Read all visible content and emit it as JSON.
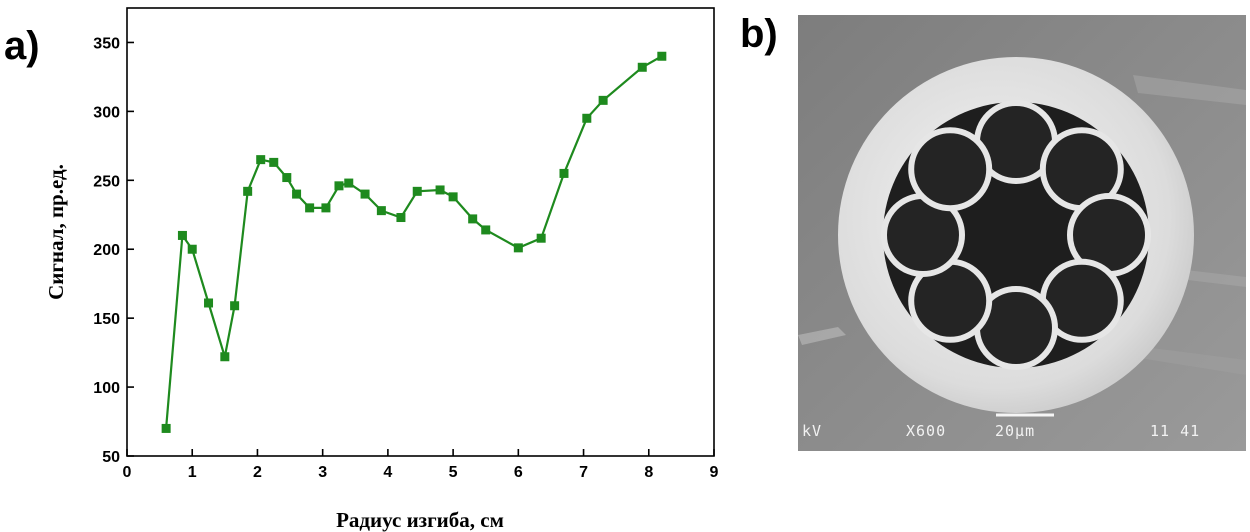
{
  "panels": {
    "a_label": "a)",
    "b_label": "b)"
  },
  "chart_data": {
    "type": "line",
    "xlabel": "Радиус изгиба, см",
    "ylabel": "Сигнал, пр.ед.",
    "xlim": [
      0,
      9
    ],
    "ylim": [
      50,
      375
    ],
    "x_ticks": [
      0,
      1,
      2,
      3,
      4,
      5,
      6,
      7,
      8,
      9
    ],
    "y_ticks": [
      50,
      100,
      150,
      200,
      250,
      300,
      350
    ],
    "grid": false,
    "marker": "square",
    "color": "#1e8a1e",
    "series": [
      {
        "x": [
          0.6,
          0.85,
          1.0,
          1.25,
          1.5,
          1.65,
          1.85,
          2.05,
          2.25,
          2.45,
          2.6,
          2.8,
          3.05,
          3.25,
          3.4,
          3.65,
          3.9,
          4.2,
          4.45,
          4.8,
          5.0,
          5.3,
          5.5,
          6.0,
          6.35,
          6.7,
          7.05,
          7.3,
          7.9,
          8.2
        ],
        "y": [
          70,
          210,
          200,
          161,
          122,
          159,
          242,
          265,
          263,
          252,
          240,
          230,
          230,
          246,
          248,
          240,
          228,
          223,
          242,
          243,
          238,
          222,
          214,
          201,
          208,
          255,
          295,
          308,
          332,
          340
        ]
      }
    ]
  },
  "sem_image": {
    "caption_kv": "kV",
    "caption_mag": "X600",
    "caption_scale": "20µm",
    "caption_num": "11 41"
  }
}
